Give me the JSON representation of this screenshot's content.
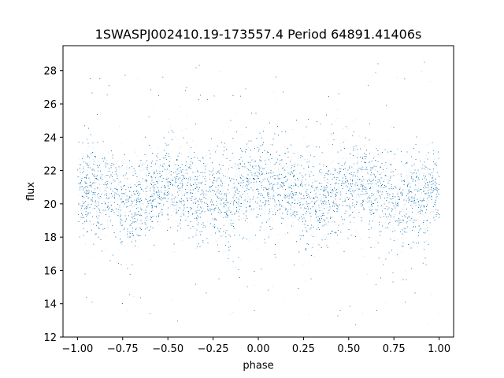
{
  "chart_data": {
    "type": "scatter",
    "title": "1SWASPJ002410.19-173557.4 Period 64891.41406s",
    "xlabel": "phase",
    "ylabel": "flux",
    "xlim": [
      -1.08,
      1.08
    ],
    "ylim": [
      12.0,
      29.5
    ],
    "xticks": [
      -1.0,
      -0.75,
      -0.5,
      -0.25,
      0.0,
      0.25,
      0.5,
      0.75,
      1.0
    ],
    "xtick_labels": [
      "−1.00",
      "−0.75",
      "−0.50",
      "−0.25",
      "0.00",
      "0.25",
      "0.50",
      "0.75",
      "1.00"
    ],
    "yticks": [
      12,
      14,
      16,
      18,
      20,
      22,
      24,
      26,
      28
    ],
    "ytick_labels": [
      "12",
      "14",
      "16",
      "18",
      "20",
      "22",
      "24",
      "26",
      "28"
    ],
    "grid": false,
    "marker_color": "#1f77b4",
    "series": [
      {
        "x_range": [
          -1.0,
          1.0
        ],
        "y_range": [
          12.6,
          28.6
        ],
        "phase_profile": {
          "phase": [
            -1.0,
            -0.9,
            -0.8,
            -0.7,
            -0.6,
            -0.5,
            -0.4,
            -0.3,
            -0.2,
            -0.1,
            0.0,
            0.1,
            0.2,
            0.3,
            0.4,
            0.5,
            0.6,
            0.7,
            0.8,
            0.9,
            1.0
          ],
          "median_flux": [
            21.0,
            20.8,
            20.4,
            20.1,
            20.6,
            21.2,
            21.0,
            20.5,
            20.0,
            20.8,
            21.2,
            21.0,
            20.6,
            20.2,
            20.6,
            21.1,
            21.0,
            20.5,
            20.0,
            20.5,
            21.0
          ]
        },
        "scatter_sigma": 1.3,
        "n_points": 50000
      }
    ]
  }
}
